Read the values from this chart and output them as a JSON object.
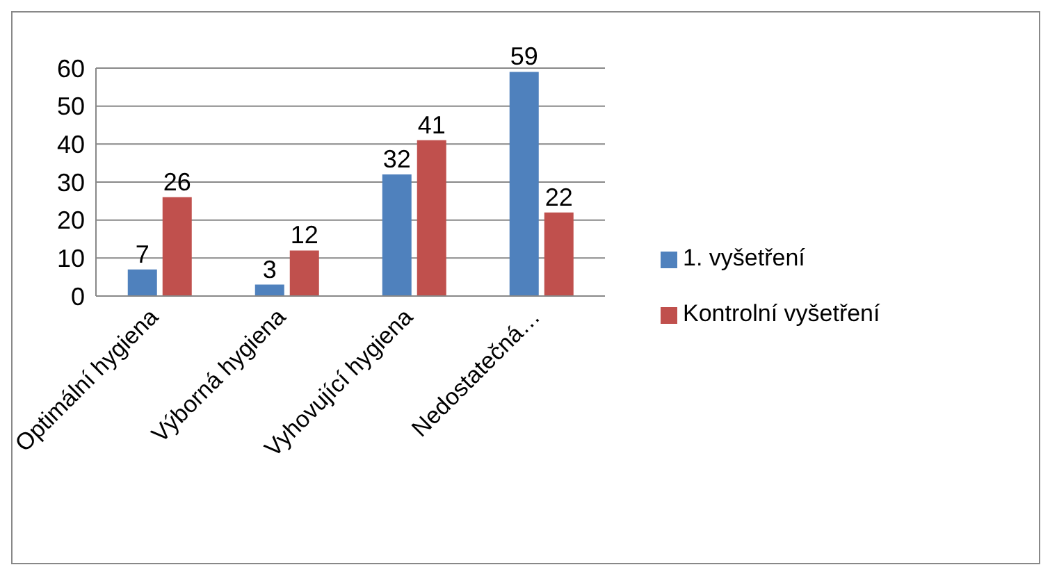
{
  "chart_data": {
    "type": "bar",
    "categories": [
      "Optimální hygiena",
      "Výborná hygiena",
      "Vyhovující hygiena",
      "Nedostatečná…"
    ],
    "series": [
      {
        "name": "1. vyšetření",
        "color": "#4f81bd",
        "values": [
          7,
          3,
          32,
          59
        ]
      },
      {
        "name": "Kontrolní vyšetření",
        "color": "#c0504d",
        "values": [
          26,
          12,
          41,
          22
        ]
      }
    ],
    "ylim": [
      0,
      60
    ],
    "yticks": [
      0,
      10,
      20,
      30,
      40,
      50,
      60
    ],
    "grid": "y",
    "legend": "right",
    "data_labels": true
  }
}
